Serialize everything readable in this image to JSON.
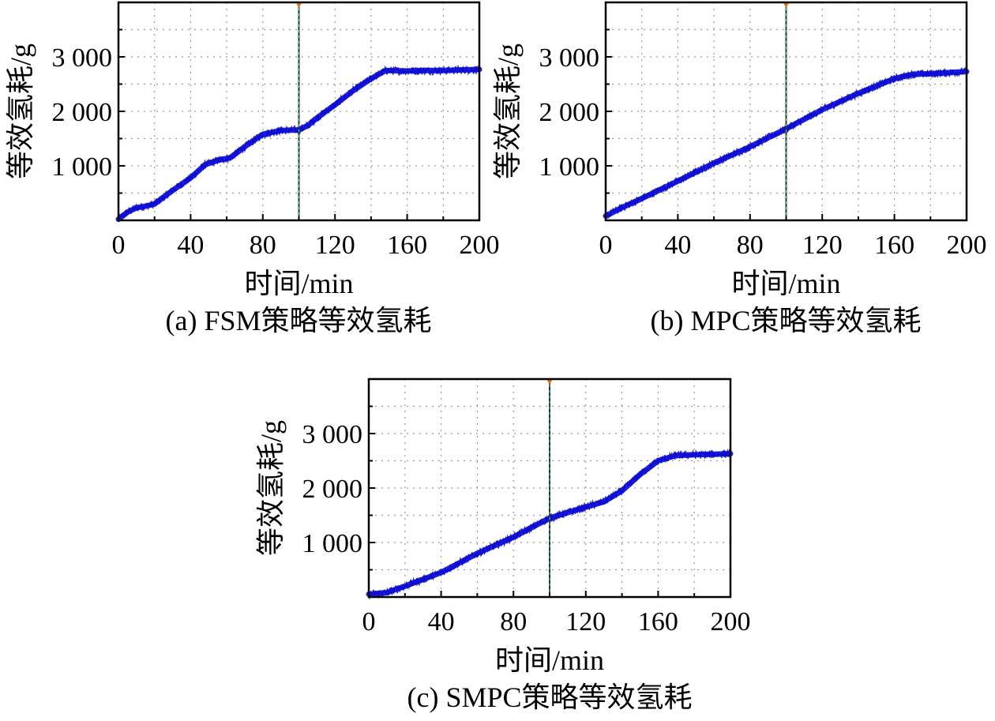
{
  "chart_data": [
    {
      "type": "line",
      "caption": "(a) FSM策略等效氢耗",
      "xlabel": "时间/min",
      "ylabel": "等效氢耗/g",
      "xlim": [
        0,
        200
      ],
      "ylim": [
        0,
        4000
      ],
      "xticks": [
        0,
        40,
        80,
        120,
        160,
        200
      ],
      "xtick_labels": [
        "0",
        "40",
        "80",
        "120",
        "160",
        "200"
      ],
      "yticks": [
        1000,
        2000,
        3000
      ],
      "ytick_labels": [
        "1 000",
        "2 000",
        "3 000"
      ],
      "grid": true,
      "cursor_x": 100,
      "series": [
        {
          "color": "#1f1fe0",
          "x": [
            0,
            5,
            10,
            15,
            20,
            30,
            40,
            48,
            55,
            62,
            70,
            80,
            90,
            100,
            105,
            110,
            120,
            130,
            140,
            148,
            160,
            170,
            180,
            190,
            200
          ],
          "y": [
            20,
            150,
            230,
            260,
            300,
            550,
            780,
            1020,
            1100,
            1150,
            1350,
            1580,
            1650,
            1660,
            1740,
            1880,
            2120,
            2380,
            2600,
            2750,
            2740,
            2750,
            2750,
            2760,
            2770
          ]
        }
      ]
    },
    {
      "type": "line",
      "caption": "(b) MPC策略等效氢耗",
      "xlabel": "时间/min",
      "ylabel": "等效氢耗/g",
      "xlim": [
        0,
        200
      ],
      "ylim": [
        0,
        4000
      ],
      "xticks": [
        0,
        40,
        80,
        120,
        160,
        200
      ],
      "xtick_labels": [
        "0",
        "40",
        "80",
        "120",
        "160",
        "200"
      ],
      "yticks": [
        1000,
        2000,
        3000
      ],
      "ytick_labels": [
        "1 000",
        "2 000",
        "3 000"
      ],
      "grid": true,
      "cursor_x": 100,
      "series": [
        {
          "color": "#1f1fe0",
          "x": [
            0,
            10,
            20,
            40,
            60,
            80,
            100,
            120,
            140,
            160,
            170,
            180,
            190,
            200
          ],
          "y": [
            80,
            250,
            400,
            720,
            1050,
            1350,
            1680,
            2030,
            2330,
            2600,
            2680,
            2690,
            2710,
            2730
          ]
        }
      ]
    },
    {
      "type": "line",
      "caption": "(c) SMPC策略等效氢耗",
      "xlabel": "时间/min",
      "ylabel": "等效氢耗/g",
      "xlim": [
        0,
        200
      ],
      "ylim": [
        0,
        4000
      ],
      "xticks": [
        0,
        40,
        80,
        120,
        160,
        200
      ],
      "xtick_labels": [
        "0",
        "40",
        "80",
        "120",
        "160",
        "200"
      ],
      "yticks": [
        1000,
        2000,
        3000
      ],
      "ytick_labels": [
        "1 000",
        "2 000",
        "3 000"
      ],
      "grid": true,
      "cursor_x": 100,
      "series": [
        {
          "color": "#1f1fe0",
          "x": [
            0,
            10,
            20,
            40,
            60,
            80,
            100,
            120,
            130,
            140,
            150,
            160,
            170,
            180,
            190,
            200
          ],
          "y": [
            50,
            80,
            200,
            450,
            800,
            1100,
            1450,
            1650,
            1750,
            1950,
            2250,
            2500,
            2600,
            2610,
            2620,
            2630
          ]
        }
      ]
    }
  ]
}
